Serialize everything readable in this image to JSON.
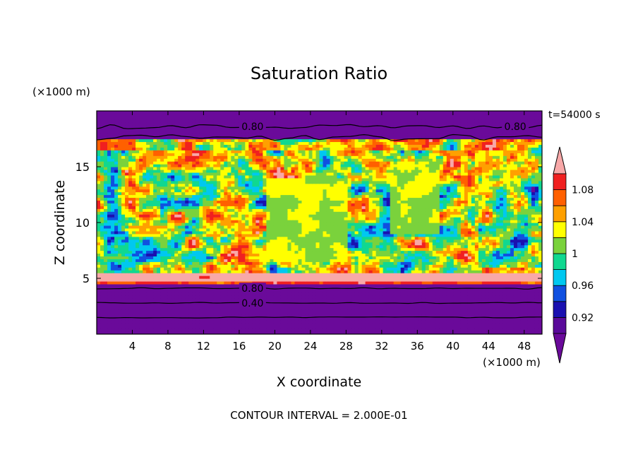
{
  "chart_data": {
    "type": "heatmap",
    "title": "Saturation Ratio",
    "xlabel": "X coordinate",
    "ylabel": "Z coordinate",
    "x_unit": "(×1000 m)",
    "y_unit": "(×1000 m)",
    "time_label": "t=54000 s",
    "footer": "CONTOUR INTERVAL = 2.000E-01",
    "xlim": [
      0,
      50
    ],
    "ylim": [
      0,
      20
    ],
    "x_ticks": [
      4,
      8,
      12,
      16,
      20,
      24,
      28,
      32,
      36,
      40,
      44,
      48
    ],
    "y_ticks": [
      5,
      10,
      15
    ],
    "contour_labels": [
      {
        "text": "0.80",
        "x": 17.5,
        "z": 18.6
      },
      {
        "text": "0.80",
        "x": 47.0,
        "z": 18.6
      },
      {
        "text": "0.80",
        "x": 17.5,
        "z": 4.1
      },
      {
        "text": "0.40",
        "x": 17.5,
        "z": 2.8
      }
    ],
    "colorbar": {
      "levels": [
        0.9,
        0.92,
        0.94,
        0.96,
        0.98,
        1.0,
        1.02,
        1.04,
        1.06,
        1.08,
        1.1
      ],
      "labels": [
        "0.92",
        "0.96",
        "1",
        "1.04",
        "1.08"
      ],
      "colors": [
        "#5a0a9a",
        "#1a10b0",
        "#1050e0",
        "#00c8f0",
        "#10d890",
        "#7ad23c",
        "#ffff00",
        "#ffa000",
        "#ff6000",
        "#f02020",
        "#f8a8a8"
      ],
      "under_color": "#6a0a9a",
      "over_color": "#f8a8a8"
    },
    "field_summary": {
      "z_0_to_4.5": "below 0.90 (purple), contours 0.40 and 0.80",
      "z_4.5_to_6": "above 1.10 (pink) with 1.06–1.10 bands",
      "z_6_to_17.5": "mixed 0.92–1.10, dominant ~1.00 (green)",
      "z_17.5_to_20": "below 0.90 (purple), contour 0.80"
    }
  }
}
